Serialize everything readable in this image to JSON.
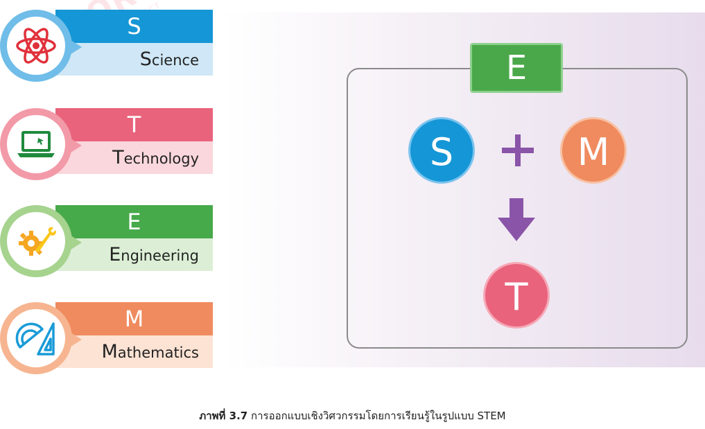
{
  "watermark": {
    "main": "AKSORN",
    "sub": "Aksorn Charoen Tat ACT"
  },
  "stem_items": [
    {
      "letter": "S",
      "rest": "cience",
      "initial": "S",
      "color": "#1596d6",
      "light": "#cfe7f6",
      "icon": "atom-icon"
    },
    {
      "letter": "T",
      "rest": "echnology",
      "initial": "T",
      "color": "#e9637c",
      "light": "#fad7dc",
      "icon": "laptop-icon"
    },
    {
      "letter": "E",
      "rest": "ngineering",
      "initial": "E",
      "color": "#46a94a",
      "light": "#dcefd6",
      "icon": "gear-wrench-icon"
    },
    {
      "letter": "M",
      "rest": "athematics",
      "initial": "M",
      "color": "#ef8b5f",
      "light": "#fde3d4",
      "icon": "ruler-triangle-icon"
    }
  ],
  "diagram": {
    "top_box": "E",
    "left_circle": "S",
    "right_circle": "M",
    "bottom_circle": "T",
    "colors": {
      "E": "#4aa84a",
      "S": "#1596d6",
      "M": "#ef8b5f",
      "T": "#e9637c",
      "operator": "#8a54a8"
    }
  },
  "caption": {
    "lead": "ภาพที่ 3.7",
    "text": " การออกแบบเชิงวิศวกรรมโดยการเรียนรู้ในรูปแบบ STEM"
  }
}
